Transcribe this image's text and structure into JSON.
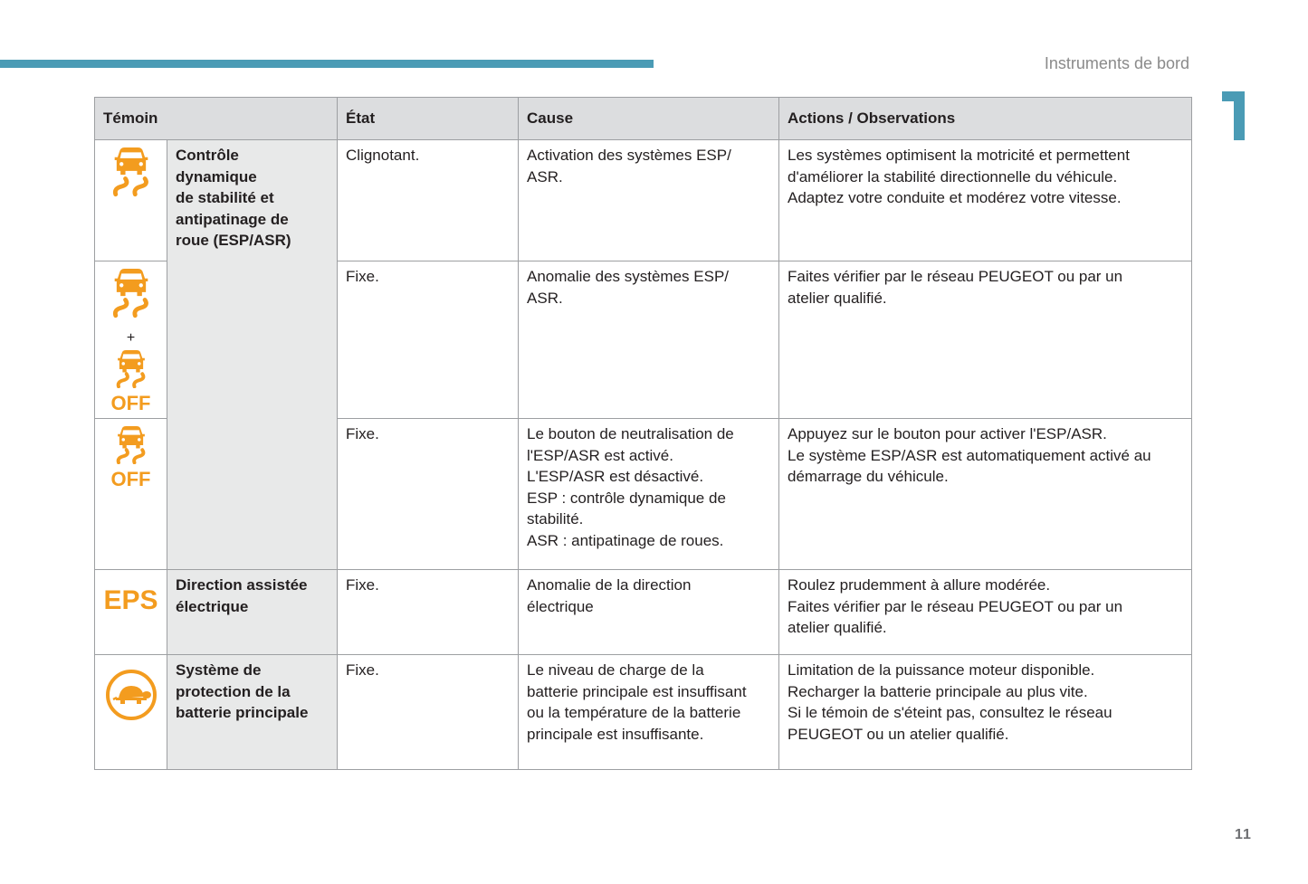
{
  "header": {
    "section_title": "Instruments de bord",
    "chapter_number": "1",
    "page_number": "11"
  },
  "colors": {
    "accent": "#4a9bb5",
    "warning": "#f39c1f"
  },
  "table": {
    "columns": [
      "Témoin",
      "État",
      "Cause",
      "Actions / Observations"
    ],
    "groups": [
      {
        "name": "Contrôle dynamique de stabilité et antipatinage de roue (ESP/ASR)",
        "name_lines": [
          "Contrôle",
          "dynamique",
          "de stabilité et",
          "antipatinage de",
          "roue (ESP/ASR)"
        ]
      },
      {
        "name_lines": [
          "Direction assistée",
          "électrique"
        ]
      },
      {
        "name_lines": [
          "Système de",
          "protection de la",
          "batterie principale"
        ]
      }
    ],
    "rows": [
      {
        "icon": "esp-skid-icon",
        "state": "Clignotant.",
        "cause": [
          "Activation des systèmes ESP/",
          "ASR."
        ],
        "actions": [
          "Les systèmes optimisent la motricité et permettent",
          "d'améliorer la stabilité directionnelle du véhicule.",
          "Adaptez votre conduite et modérez votre vitesse."
        ]
      },
      {
        "icon": "esp-skid-icon + esp-off-icon",
        "plus": "+",
        "off_label": "OFF",
        "state": "Fixe.",
        "cause": [
          "Anomalie des systèmes ESP/",
          "ASR."
        ],
        "actions": [
          "Faites vérifier par le réseau PEUGEOT ou par un",
          "atelier qualifié."
        ]
      },
      {
        "icon": "esp-off-icon",
        "off_label": "OFF",
        "state": "Fixe.",
        "cause": [
          "Le bouton de neutralisation de",
          "l'ESP/ASR est activé.",
          "L'ESP/ASR est désactivé.",
          "ESP : contrôle dynamique de",
          "stabilité.",
          "ASR : antipatinage de roues."
        ],
        "actions": [
          "Appuyez sur le bouton pour activer l'ESP/ASR.",
          "Le système ESP/ASR est automatiquement activé au",
          "démarrage du véhicule."
        ]
      },
      {
        "icon": "eps-icon",
        "icon_text": "EPS",
        "state": "Fixe.",
        "cause": [
          "Anomalie de la direction",
          "électrique"
        ],
        "actions": [
          "Roulez prudemment à allure modérée.",
          "Faites vérifier par le réseau PEUGEOT ou par un",
          "atelier qualifié."
        ]
      },
      {
        "icon": "turtle-icon",
        "state": "Fixe.",
        "cause": [
          "Le niveau de charge de la",
          "batterie principale est insuffisant",
          "ou la température de la batterie",
          "principale est insuffisante."
        ],
        "actions": [
          "Limitation de la puissance moteur disponible.",
          "Recharger la batterie principale au plus vite.",
          "Si le témoin de s'éteint pas, consultez le réseau",
          "PEUGEOT ou un atelier qualifié."
        ]
      }
    ]
  }
}
